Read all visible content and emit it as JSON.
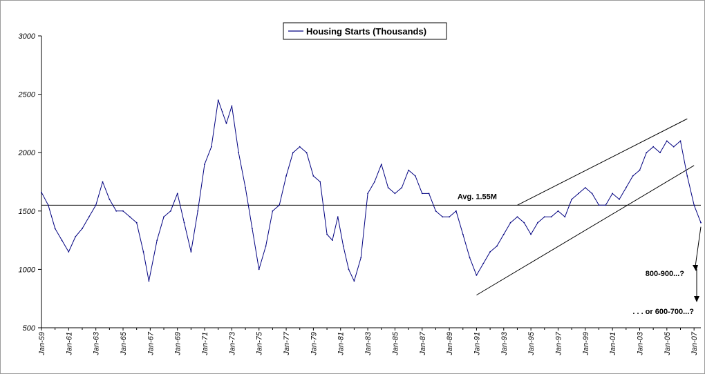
{
  "chart_data": {
    "type": "line",
    "title": "",
    "xlabel": "",
    "ylabel": "",
    "ylim": [
      500,
      3000
    ],
    "yticks": [
      500,
      1000,
      1500,
      2000,
      2500,
      3000
    ],
    "grid": false,
    "legend_position": "top-center",
    "x_start_year": 1959,
    "x_end_year": 2007.5,
    "xtick_labels": [
      "Jan-59",
      "Jan-61",
      "Jan-63",
      "Jan-65",
      "Jan-67",
      "Jan-69",
      "Jan-71",
      "Jan-73",
      "Jan-75",
      "Jan-77",
      "Jan-79",
      "Jan-81",
      "Jan-83",
      "Jan-85",
      "Jan-87",
      "Jan-89",
      "Jan-91",
      "Jan-93",
      "Jan-95",
      "Jan-97",
      "Jan-99",
      "Jan-01",
      "Jan-03",
      "Jan-05",
      "Jan-07"
    ],
    "series": [
      {
        "name": "Housing Starts (Thousands)",
        "color": "#000080",
        "x": [
          1959.0,
          1959.5,
          1960.0,
          1960.5,
          1961.0,
          1961.5,
          1962.0,
          1962.5,
          1963.0,
          1963.5,
          1964.0,
          1964.5,
          1965.0,
          1965.5,
          1966.0,
          1966.5,
          1966.9,
          1967.5,
          1968.0,
          1968.5,
          1969.0,
          1969.5,
          1970.0,
          1970.5,
          1971.0,
          1971.5,
          1972.0,
          1972.3,
          1972.6,
          1973.0,
          1973.5,
          1974.0,
          1974.5,
          1975.0,
          1975.5,
          1976.0,
          1976.5,
          1977.0,
          1977.5,
          1978.0,
          1978.5,
          1979.0,
          1979.5,
          1980.0,
          1980.4,
          1980.8,
          1981.2,
          1981.6,
          1982.0,
          1982.5,
          1983.0,
          1983.5,
          1984.0,
          1984.5,
          1985.0,
          1985.5,
          1986.0,
          1986.5,
          1987.0,
          1987.5,
          1988.0,
          1988.5,
          1989.0,
          1989.5,
          1990.0,
          1990.5,
          1991.0,
          1991.5,
          1992.0,
          1992.5,
          1993.0,
          1993.5,
          1994.0,
          1994.5,
          1995.0,
          1995.5,
          1996.0,
          1996.5,
          1997.0,
          1997.5,
          1998.0,
          1998.5,
          1999.0,
          1999.5,
          2000.0,
          2000.5,
          2001.0,
          2001.5,
          2002.0,
          2002.5,
          2003.0,
          2003.5,
          2004.0,
          2004.5,
          2005.0,
          2005.5,
          2006.0,
          2006.5,
          2007.0,
          2007.5
        ],
        "values": [
          1660,
          1550,
          1350,
          1250,
          1150,
          1280,
          1350,
          1450,
          1550,
          1750,
          1600,
          1500,
          1500,
          1450,
          1400,
          1150,
          900,
          1250,
          1450,
          1500,
          1650,
          1400,
          1150,
          1500,
          1900,
          2050,
          2450,
          2350,
          2250,
          2400,
          2000,
          1700,
          1350,
          1000,
          1200,
          1500,
          1550,
          1800,
          2000,
          2050,
          2000,
          1800,
          1750,
          1300,
          1250,
          1450,
          1200,
          1000,
          900,
          1100,
          1650,
          1750,
          1900,
          1700,
          1650,
          1700,
          1850,
          1800,
          1650,
          1650,
          1500,
          1450,
          1450,
          1500,
          1300,
          1100,
          950,
          1050,
          1150,
          1200,
          1300,
          1400,
          1450,
          1400,
          1300,
          1400,
          1450,
          1450,
          1500,
          1450,
          1600,
          1650,
          1700,
          1650,
          1550,
          1550,
          1650,
          1600,
          1700,
          1800,
          1850,
          2000,
          2050,
          2000,
          2100,
          2050,
          2100,
          1800,
          1550,
          1400
        ]
      }
    ],
    "average_line": {
      "value": 1550,
      "label": "Avg. 1.55M"
    },
    "channel_lines": [
      {
        "from": {
          "x": 1991.0,
          "y": 780
        },
        "to": {
          "x": 2007.0,
          "y": 1890
        }
      },
      {
        "from": {
          "x": 1994.0,
          "y": 1550
        },
        "to": {
          "x": 2006.5,
          "y": 2290
        }
      }
    ],
    "annotations": [
      {
        "text": "800-900...?"
      },
      {
        "text": ". . . or 600-700...?"
      }
    ]
  }
}
